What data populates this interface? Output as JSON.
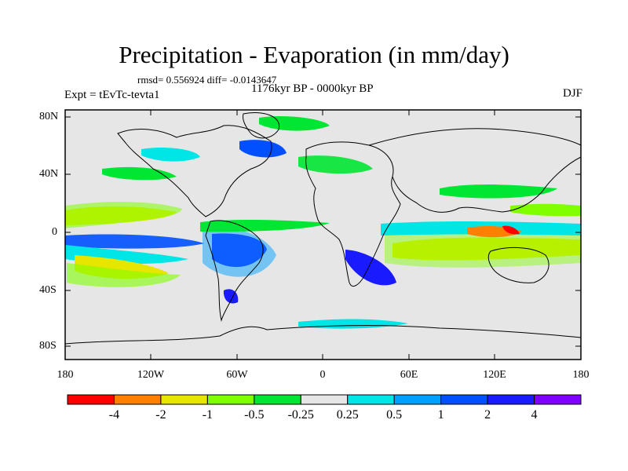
{
  "title": "Precipitation - Evaporation (in mm/day)",
  "stats": "rmsd= 0.556924 diff= -0.0143647",
  "period": "1176kyr BP - 0000kyr BP",
  "experiment": "Expt = tEvTc-tevta1",
  "season": "DJF",
  "map": {
    "lat_ticks": [
      "80N",
      "40N",
      "0",
      "40S",
      "80S"
    ],
    "lon_ticks": [
      "180",
      "120W",
      "60W",
      "0",
      "60E",
      "120E",
      "180"
    ],
    "background": "#e6e6e6"
  },
  "colorbar": {
    "labels": [
      "-4",
      "-2",
      "-1",
      "-0.5",
      "-0.25",
      "0.25",
      "0.5",
      "1",
      "2",
      "4"
    ],
    "colors": [
      "#ff0000",
      "#ff8000",
      "#e6e600",
      "#80ff00",
      "#00e633",
      "#e6e6e6",
      "#00e6e6",
      "#00a0ff",
      "#0050ff",
      "#1a1aff",
      "#8000ff"
    ]
  }
}
